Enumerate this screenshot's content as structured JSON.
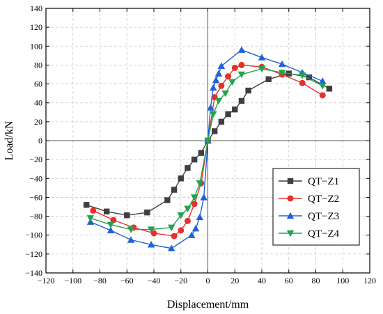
{
  "chart_data": {
    "type": "line",
    "title": "",
    "xlabel": "Displacement/mm",
    "ylabel": "Load/kN",
    "xlim": [
      -120,
      120
    ],
    "ylim": [
      -140,
      140
    ],
    "xticks": [
      -120,
      -100,
      -80,
      -60,
      -40,
      -20,
      0,
      20,
      40,
      60,
      80,
      100,
      120
    ],
    "yticks": [
      -140,
      -120,
      -100,
      -80,
      -60,
      -40,
      -20,
      0,
      20,
      40,
      60,
      80,
      100,
      120,
      140
    ],
    "grid": true,
    "legend_position": "lower-right",
    "series": [
      {
        "name": "QT−Z1",
        "color": "#3f3f3f",
        "marker": "square",
        "x": [
          -90,
          -75,
          -60,
          -45,
          -30,
          -25,
          -20,
          -15,
          -10,
          -5,
          0,
          5,
          10,
          15,
          20,
          25,
          30,
          45,
          60,
          75,
          90
        ],
        "y": [
          -68,
          -75,
          -79,
          -76,
          -63,
          -52,
          -40,
          -29,
          -20,
          -13,
          0,
          10,
          20,
          28,
          33,
          42,
          53,
          65,
          71,
          67,
          55
        ]
      },
      {
        "name": "QT−Z2",
        "color": "#e8302a",
        "marker": "circle",
        "x": [
          -85,
          -70,
          -55,
          -40,
          -25,
          -20,
          -15,
          -10,
          -5,
          0,
          5,
          10,
          15,
          20,
          25,
          40,
          55,
          70,
          85
        ],
        "y": [
          -74,
          -84,
          -92,
          -98,
          -101,
          -95,
          -85,
          -67,
          -45,
          0,
          46,
          58,
          68,
          77,
          80,
          78,
          70,
          61,
          48
        ]
      },
      {
        "name": "QT−Z3",
        "color": "#1f62d6",
        "marker": "triangle-up",
        "x": [
          -87,
          -72,
          -57,
          -42,
          -27,
          -12,
          -9,
          -6,
          -3,
          0,
          2,
          4,
          6,
          8,
          10,
          25,
          40,
          55,
          70,
          85
        ],
        "y": [
          -86,
          -95,
          -105,
          -110,
          -114,
          -100,
          -93,
          -81,
          -60,
          0,
          35,
          56,
          64,
          71,
          79,
          96,
          88,
          81,
          72,
          63
        ]
      },
      {
        "name": "QT−Z4",
        "color": "#22a34f",
        "marker": "triangle-down",
        "x": [
          -87,
          -72,
          -57,
          -42,
          -27,
          -20,
          -15,
          -10,
          -6,
          0,
          4,
          8,
          13,
          18,
          25,
          40,
          55,
          70,
          85
        ],
        "y": [
          -82,
          -89,
          -94,
          -94,
          -92,
          -79,
          -72,
          -60,
          -45,
          0,
          28,
          42,
          50,
          62,
          70,
          76,
          72,
          69,
          58
        ]
      }
    ]
  }
}
